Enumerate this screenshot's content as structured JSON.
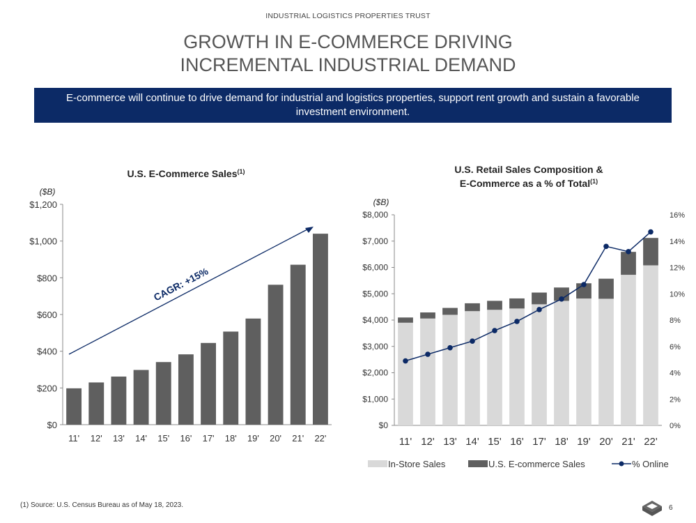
{
  "header": {
    "company": "INDUSTRIAL LOGISTICS PROPERTIES TRUST",
    "title_line1": "GROWTH IN E-COMMERCE DRIVING",
    "title_line2": "INCREMENTAL INDUSTRIAL DEMAND"
  },
  "banner": {
    "text": "E-commerce will continue to drive demand for industrial and logistics properties, support rent growth and sustain a favorable investment environment."
  },
  "colors": {
    "navy": "#0c2a66",
    "bar_dark": "#5f5f5f",
    "bar_light": "#d9d9d9"
  },
  "chart_data": [
    {
      "type": "bar",
      "title": "U.S. E-Commerce Sales",
      "title_sup": "(1)",
      "unit_label": "($B)",
      "categories": [
        "11'",
        "12'",
        "13'",
        "14'",
        "15'",
        "16'",
        "17'",
        "18'",
        "19'",
        "20'",
        "21'",
        "22'"
      ],
      "values": [
        198,
        230,
        262,
        298,
        341,
        383,
        445,
        507,
        578,
        762,
        871,
        1040
      ],
      "ylim": [
        0,
        1200
      ],
      "yticks": [
        "$0",
        "$200",
        "$400",
        "$600",
        "$800",
        "$1,000",
        "$1,200"
      ],
      "annotation": "CAGR: +15%",
      "grid": false
    },
    {
      "type": "bar",
      "stacked": true,
      "title_line1": "U.S. Retail Sales Composition &",
      "title_line2": "E-Commerce as a % of Total",
      "title_sup": "(1)",
      "unit_label": "($B)",
      "categories": [
        "11'",
        "12'",
        "13'",
        "14'",
        "15'",
        "16'",
        "17'",
        "18'",
        "19'",
        "20'",
        "21'",
        "22'"
      ],
      "series": [
        {
          "name": "In-Store Sales",
          "values": [
            3900,
            4060,
            4200,
            4340,
            4390,
            4440,
            4600,
            4730,
            4820,
            4810,
            5720,
            6080
          ]
        },
        {
          "name": "U.S. E-commerce Sales",
          "values": [
            198,
            230,
            262,
            298,
            341,
            383,
            445,
            507,
            578,
            762,
            871,
            1040
          ]
        },
        {
          "name": "% Online",
          "axis": "right",
          "values": [
            4.9,
            5.4,
            5.9,
            6.4,
            7.2,
            7.9,
            8.8,
            9.6,
            10.7,
            13.6,
            13.2,
            14.7
          ]
        }
      ],
      "ylim": [
        0,
        8000
      ],
      "yticks": [
        "$0",
        "$1,000",
        "$2,000",
        "$3,000",
        "$4,000",
        "$5,000",
        "$6,000",
        "$7,000",
        "$8,000"
      ],
      "y2lim": [
        0,
        16
      ],
      "y2ticks": [
        "0%",
        "2%",
        "4%",
        "6%",
        "8%",
        "10%",
        "12%",
        "14%",
        "16%"
      ],
      "legend_position": "bottom",
      "grid": false
    }
  ],
  "footnote": "(1)   Source: U.S. Census Bureau as of May 18, 2023.",
  "page_number": "6",
  "logo_icon": "diamond-logo-icon"
}
